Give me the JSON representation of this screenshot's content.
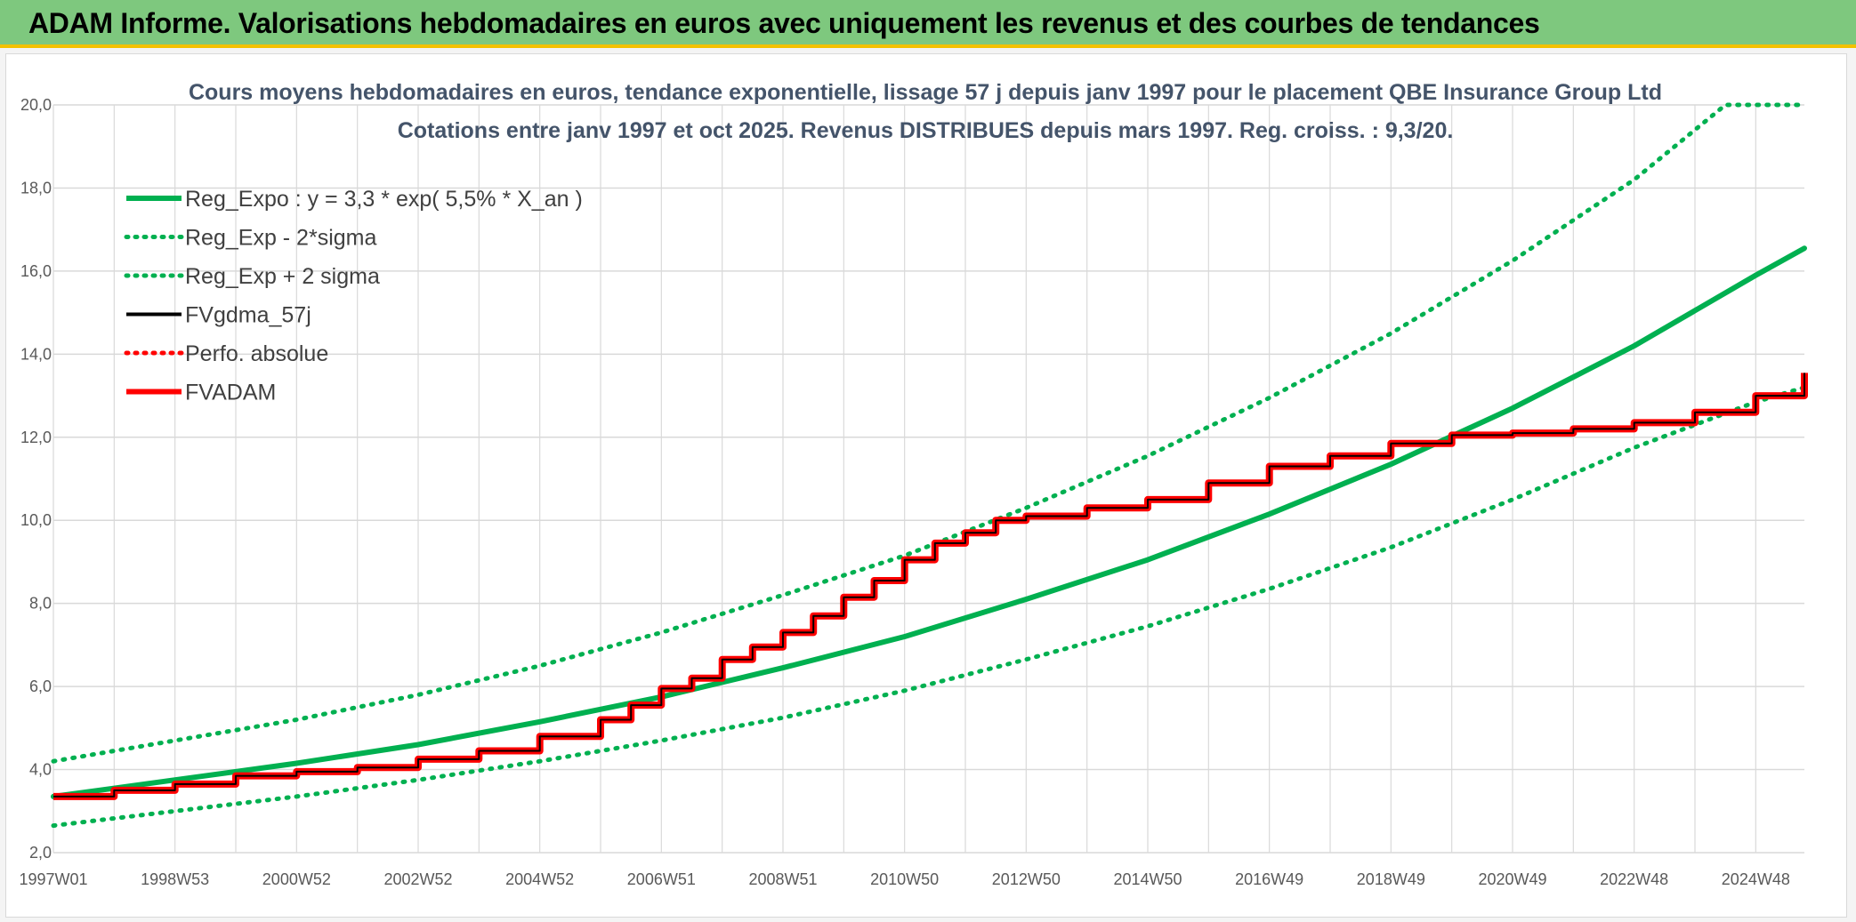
{
  "banner": {
    "title": "ADAM Informe. Valorisations hebdomadaires en euros avec uniquement les revenus et des courbes de tendances"
  },
  "colors": {
    "banner_bg": "#7ec87e",
    "banner_accent": "#f2c100",
    "trend_green": "#00b050",
    "fv_black": "#000000",
    "adam_red": "#ff0000"
  },
  "chart_data": {
    "type": "line",
    "title": "Cours moyens hebdomadaires en euros, tendance exponentielle, lissage 57 j depuis janv 1997 pour le placement QBE Insurance Group Ltd",
    "subtitle": "Cotations entre janv 1997 et oct 2025. Revenus DISTRIBUES depuis mars 1997. Reg. croiss. : 9,3/20.",
    "xlabel": "",
    "ylabel": "",
    "x_tick_labels": [
      "1997W01",
      "1998W53",
      "2000W52",
      "2002W52",
      "2004W52",
      "2006W51",
      "2008W51",
      "2010W50",
      "2012W50",
      "2014W50",
      "2016W49",
      "2018W49",
      "2020W49",
      "2022W48",
      "2024W48"
    ],
    "x_tick_years": [
      1997.0,
      1999.0,
      2001.0,
      2003.0,
      2005.0,
      2007.0,
      2009.0,
      2011.0,
      2013.0,
      2015.0,
      2017.0,
      2019.0,
      2021.0,
      2023.0,
      2025.0
    ],
    "xlim": [
      1997.0,
      2025.8
    ],
    "ylim": [
      2.0,
      20.0
    ],
    "y_ticks": [
      "2,0",
      "4,0",
      "6,0",
      "8,0",
      "10,0",
      "12,0",
      "14,0",
      "16,0",
      "18,0",
      "20,0"
    ],
    "y_tick_values": [
      2,
      4,
      6,
      8,
      10,
      12,
      14,
      16,
      18,
      20
    ],
    "grid": true,
    "legend_position": "top-left",
    "legend": [
      {
        "label": "Reg_Expo : y = 3,3 * exp( 5,5% *  X_an )",
        "color": "#00b050",
        "style": "solid-thick"
      },
      {
        "label": "Reg_Exp - 2*sigma",
        "color": "#00b050",
        "style": "dotted"
      },
      {
        "label": "Reg_Exp + 2 sigma",
        "color": "#00b050",
        "style": "dotted"
      },
      {
        "label": "FVgdma_57j",
        "color": "#000000",
        "style": "solid"
      },
      {
        "label": "Perfo. absolue",
        "color": "#ff0000",
        "style": "dotted"
      },
      {
        "label": "FVADAM",
        "color": "#ff0000",
        "style": "solid-thick"
      }
    ],
    "series": [
      {
        "name": "Reg_Expo : y = 3,3 * exp( 5,5% *  X_an )",
        "x": [
          1997,
          1999,
          2001,
          2003,
          2005,
          2007,
          2009,
          2011,
          2013,
          2015,
          2017,
          2019,
          2021,
          2023,
          2025,
          2025.8
        ],
        "values": [
          3.35,
          3.75,
          4.15,
          4.6,
          5.15,
          5.75,
          6.45,
          7.2,
          8.1,
          9.05,
          10.15,
          11.35,
          12.7,
          14.2,
          15.9,
          16.55
        ]
      },
      {
        "name": "Reg_Exp - 2*sigma",
        "x": [
          1997,
          1999,
          2001,
          2003,
          2005,
          2007,
          2009,
          2011,
          2013,
          2015,
          2017,
          2019,
          2021,
          2023,
          2025,
          2025.8
        ],
        "values": [
          2.65,
          3.0,
          3.35,
          3.75,
          4.2,
          4.7,
          5.25,
          5.9,
          6.65,
          7.45,
          8.35,
          9.35,
          10.5,
          11.75,
          12.85,
          13.2
        ]
      },
      {
        "name": "Reg_Exp + 2 sigma",
        "x": [
          1997,
          1999,
          2001,
          2003,
          2005,
          2007,
          2009,
          2011,
          2013,
          2015,
          2017,
          2019,
          2021,
          2023,
          2024.5,
          2025.8
        ],
        "values": [
          4.2,
          4.7,
          5.2,
          5.8,
          6.5,
          7.3,
          8.2,
          9.15,
          10.3,
          11.55,
          12.95,
          14.5,
          16.25,
          18.2,
          20.0,
          20.0
        ]
      },
      {
        "name": "FVgdma_57j",
        "x": [
          1997,
          1998,
          1999,
          2000,
          2001,
          2002,
          2003,
          2004,
          2005,
          2006,
          2006.5,
          2007,
          2007.5,
          2008,
          2008.5,
          2009,
          2009.5,
          2010,
          2010.5,
          2011,
          2011.5,
          2012,
          2012.5,
          2013,
          2014,
          2015,
          2016,
          2017,
          2018,
          2019,
          2020,
          2021,
          2022,
          2023,
          2024,
          2025,
          2025.8
        ],
        "values": [
          3.35,
          3.5,
          3.65,
          3.85,
          3.95,
          4.05,
          4.25,
          4.45,
          4.8,
          5.2,
          5.55,
          5.95,
          6.2,
          6.65,
          6.95,
          7.3,
          7.7,
          8.15,
          8.55,
          9.05,
          9.45,
          9.7,
          10.0,
          10.1,
          10.3,
          10.5,
          10.9,
          11.3,
          11.55,
          11.85,
          12.05,
          12.1,
          12.2,
          12.35,
          12.6,
          13.0,
          13.55
        ]
      },
      {
        "name": "FVADAM",
        "x": [
          1997,
          1998,
          1999,
          2000,
          2001,
          2002,
          2003,
          2004,
          2005,
          2006,
          2006.5,
          2007,
          2007.5,
          2008,
          2008.5,
          2009,
          2009.5,
          2010,
          2010.5,
          2011,
          2011.5,
          2012,
          2012.5,
          2013,
          2014,
          2015,
          2016,
          2017,
          2018,
          2019,
          2020,
          2021,
          2022,
          2023,
          2024,
          2025,
          2025.8
        ],
        "values": [
          3.35,
          3.5,
          3.65,
          3.85,
          3.95,
          4.05,
          4.25,
          4.45,
          4.8,
          5.2,
          5.55,
          5.95,
          6.2,
          6.65,
          6.95,
          7.3,
          7.7,
          8.15,
          8.55,
          9.05,
          9.45,
          9.7,
          10.0,
          10.1,
          10.3,
          10.5,
          10.9,
          11.3,
          11.55,
          11.85,
          12.05,
          12.1,
          12.2,
          12.35,
          12.6,
          13.0,
          13.55
        ]
      }
    ]
  }
}
